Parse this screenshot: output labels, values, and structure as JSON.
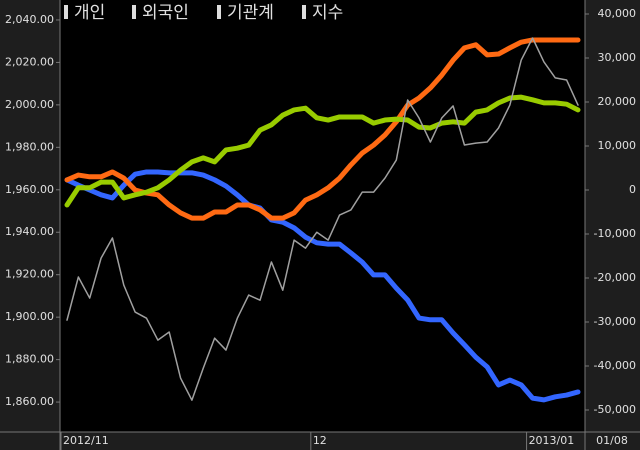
{
  "chart_data": {
    "type": "line",
    "categories": [
      "2012/11",
      null,
      null,
      null,
      null,
      null,
      null,
      null,
      null,
      null,
      null,
      null,
      null,
      null,
      null,
      null,
      null,
      null,
      null,
      null,
      null,
      null,
      "12",
      null,
      null,
      null,
      null,
      null,
      null,
      null,
      null,
      null,
      null,
      null,
      null,
      null,
      null,
      null,
      null,
      null,
      null,
      "2013/01",
      null,
      null,
      null,
      null
    ],
    "current_date": "01/08",
    "series": [
      {
        "name": "개인",
        "color": "#3366ff",
        "axis": "y2",
        "values": [
          2300,
          1100,
          0,
          -1100,
          -1800,
          1100,
          3600,
          4100,
          4100,
          3900,
          3900,
          3900,
          3400,
          2300,
          900,
          -1100,
          -3400,
          -4100,
          -6800,
          -7300,
          -8600,
          -10700,
          -12000,
          -12300,
          -12300,
          -14300,
          -16400,
          -19300,
          -19300,
          -22300,
          -25000,
          -29100,
          -29500,
          -29500,
          -32500,
          -35200,
          -38000,
          -40200,
          -44300,
          -43200,
          -44300,
          -47300,
          -47700,
          -47000,
          -46600,
          -45900
        ]
      },
      {
        "name": "외국인",
        "color": "#ff6a13",
        "axis": "y2",
        "values": [
          2300,
          3400,
          3000,
          3000,
          4100,
          2700,
          0,
          -700,
          -1100,
          -3400,
          -5200,
          -6400,
          -6400,
          -5000,
          -5000,
          -3400,
          -3400,
          -4500,
          -6400,
          -6400,
          -5200,
          -2300,
          -1100,
          500,
          2700,
          5700,
          8400,
          10200,
          12500,
          15500,
          19300,
          20900,
          23200,
          26100,
          29500,
          32300,
          33000,
          30700,
          30900,
          32300,
          33600,
          34100,
          34100,
          34100,
          34100,
          34100
        ]
      },
      {
        "name": "기관계",
        "color": "#99cc00",
        "axis": "y2",
        "values": [
          -3400,
          500,
          500,
          1800,
          1800,
          -1800,
          -1100,
          -500,
          500,
          2300,
          4500,
          6400,
          7300,
          6400,
          9100,
          9500,
          10200,
          13600,
          14800,
          17000,
          18200,
          18600,
          16400,
          15900,
          16600,
          16600,
          16600,
          15200,
          15900,
          16100,
          15900,
          14300,
          14100,
          15200,
          15500,
          15200,
          17700,
          18200,
          19800,
          20900,
          21100,
          20500,
          19800,
          19800,
          19500,
          18200
        ]
      },
      {
        "name": "지수",
        "color": "#a0a0a0",
        "axis": "y",
        "values": [
          1898.6,
          1918.9,
          1909.0,
          1927.8,
          1937.3,
          1915.1,
          1902.4,
          1899.5,
          1889.2,
          1893.0,
          1871.3,
          1860.9,
          1876.0,
          1890.1,
          1884.5,
          1899.5,
          1910.4,
          1908.0,
          1926.0,
          1912.7,
          1936.3,
          1932.5,
          1940.0,
          1936.3,
          1948.1,
          1950.5,
          1958.9,
          1958.9,
          1965.5,
          1974.0,
          2002.3,
          1993.8,
          1982.5,
          1993.8,
          1999.5,
          1981.1,
          1982.0,
          1982.5,
          1989.1,
          1999.9,
          2021.1,
          2031.5,
          2020.2,
          2012.7,
          2011.7,
          1999.9
        ]
      }
    ],
    "ylim": [
      1845.9,
      2049.4
    ],
    "yticks": [
      {
        "value": 1860,
        "label": "1,860.00"
      },
      {
        "value": 1880,
        "label": "1,880.00"
      },
      {
        "value": 1900,
        "label": "1,900.00"
      },
      {
        "value": 1920,
        "label": "1,920.00"
      },
      {
        "value": 1940,
        "label": "1,940.00"
      },
      {
        "value": 1960,
        "label": "1,960.00"
      },
      {
        "value": 1980,
        "label": "1,980.00"
      },
      {
        "value": 2000,
        "label": "2,000.00"
      },
      {
        "value": 2020,
        "label": "2,020.00"
      },
      {
        "value": 2040,
        "label": "2,040.00"
      }
    ],
    "y2lim": [
      -55000,
      43182
    ],
    "y2ticks": [
      {
        "value": -50000,
        "label": "-50,000"
      },
      {
        "value": -40000,
        "label": "-40,000"
      },
      {
        "value": -30000,
        "label": "-30,000"
      },
      {
        "value": -20000,
        "label": "-20,000"
      },
      {
        "value": -10000,
        "label": "-10,000"
      },
      0,
      {
        "value": 10000,
        "label": "10,000"
      },
      {
        "value": 20000,
        "label": "20,000"
      },
      {
        "value": 30000,
        "label": "30,000"
      },
      {
        "value": 40000,
        "label": "40,000"
      }
    ],
    "grid": false
  }
}
